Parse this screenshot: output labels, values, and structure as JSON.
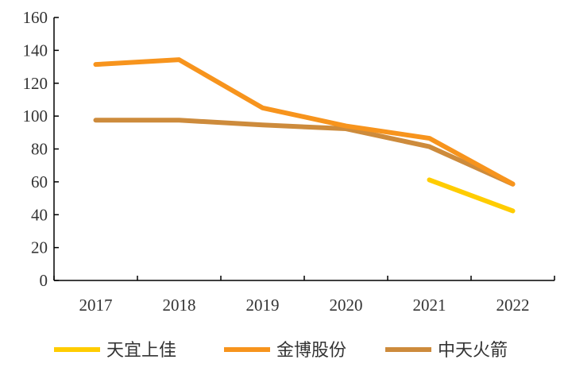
{
  "chart_data": {
    "type": "line",
    "title": "",
    "xlabel": "",
    "ylabel": "",
    "categories": [
      "2017",
      "2018",
      "2019",
      "2020",
      "2021",
      "2022"
    ],
    "ylim": [
      0,
      160
    ],
    "yticks": [
      0,
      20,
      40,
      60,
      80,
      100,
      120,
      140,
      160
    ],
    "grid": false,
    "legend_position": "bottom",
    "series": [
      {
        "name": "天宜上佳",
        "color": "#FFCC00",
        "values": [
          null,
          null,
          null,
          null,
          61.2,
          42.3
        ]
      },
      {
        "name": "金博股份",
        "color": "#F7941D",
        "values": [
          131.4,
          134.3,
          105.0,
          94.0,
          86.5,
          58.7
        ]
      },
      {
        "name": "中天火箭",
        "color": "#CD8B3C",
        "values": [
          97.5,
          97.5,
          94.6,
          92.3,
          81.4,
          58.6
        ]
      }
    ]
  }
}
